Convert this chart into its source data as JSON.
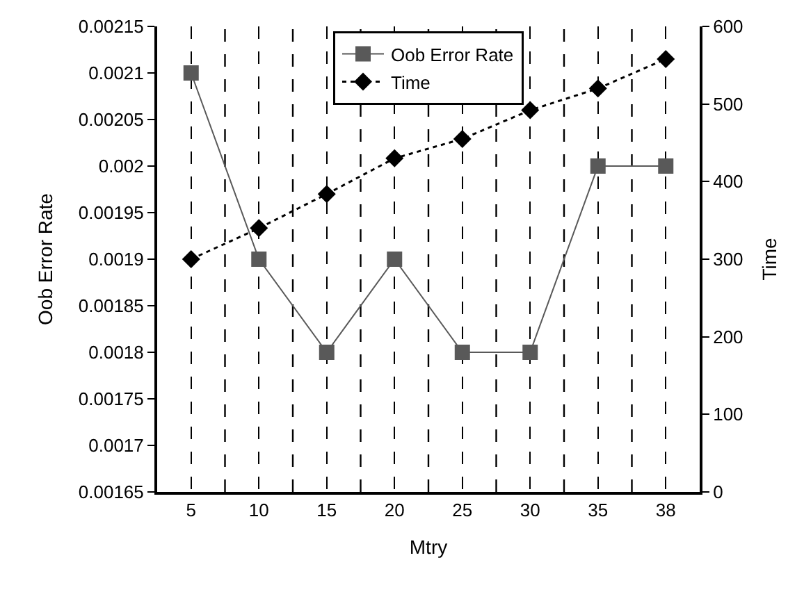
{
  "chart_data": {
    "type": "line",
    "xlabel": "Mtry",
    "ylabel": "Oob Error Rate",
    "y2label": "Time",
    "categories": [
      "5",
      "10",
      "15",
      "20",
      "25",
      "30",
      "35",
      "38"
    ],
    "series": [
      {
        "name": "Oob Error Rate",
        "color": "#595959",
        "marker": "square",
        "values": [
          0.0021,
          0.0019,
          0.0018,
          0.0019,
          0.0018,
          0.0018,
          0.002,
          0.002
        ]
      },
      {
        "name": "Time",
        "color": "#000000",
        "marker": "diamond",
        "axis": "y2",
        "line_style": "dashed",
        "values": [
          300,
          340,
          384,
          430,
          455,
          492,
          520,
          558
        ]
      }
    ],
    "ylim": [
      0.00165,
      0.00215
    ],
    "yticks": [
      0.00165,
      0.0017,
      0.00175,
      0.0018,
      0.00185,
      0.0019,
      0.00195,
      0.002,
      0.00205,
      0.0021,
      0.00215
    ],
    "y2lim": [
      0,
      600
    ],
    "y2ticks": [
      0,
      100,
      200,
      300,
      400,
      500,
      600
    ],
    "grid": "x",
    "legend": "top"
  }
}
